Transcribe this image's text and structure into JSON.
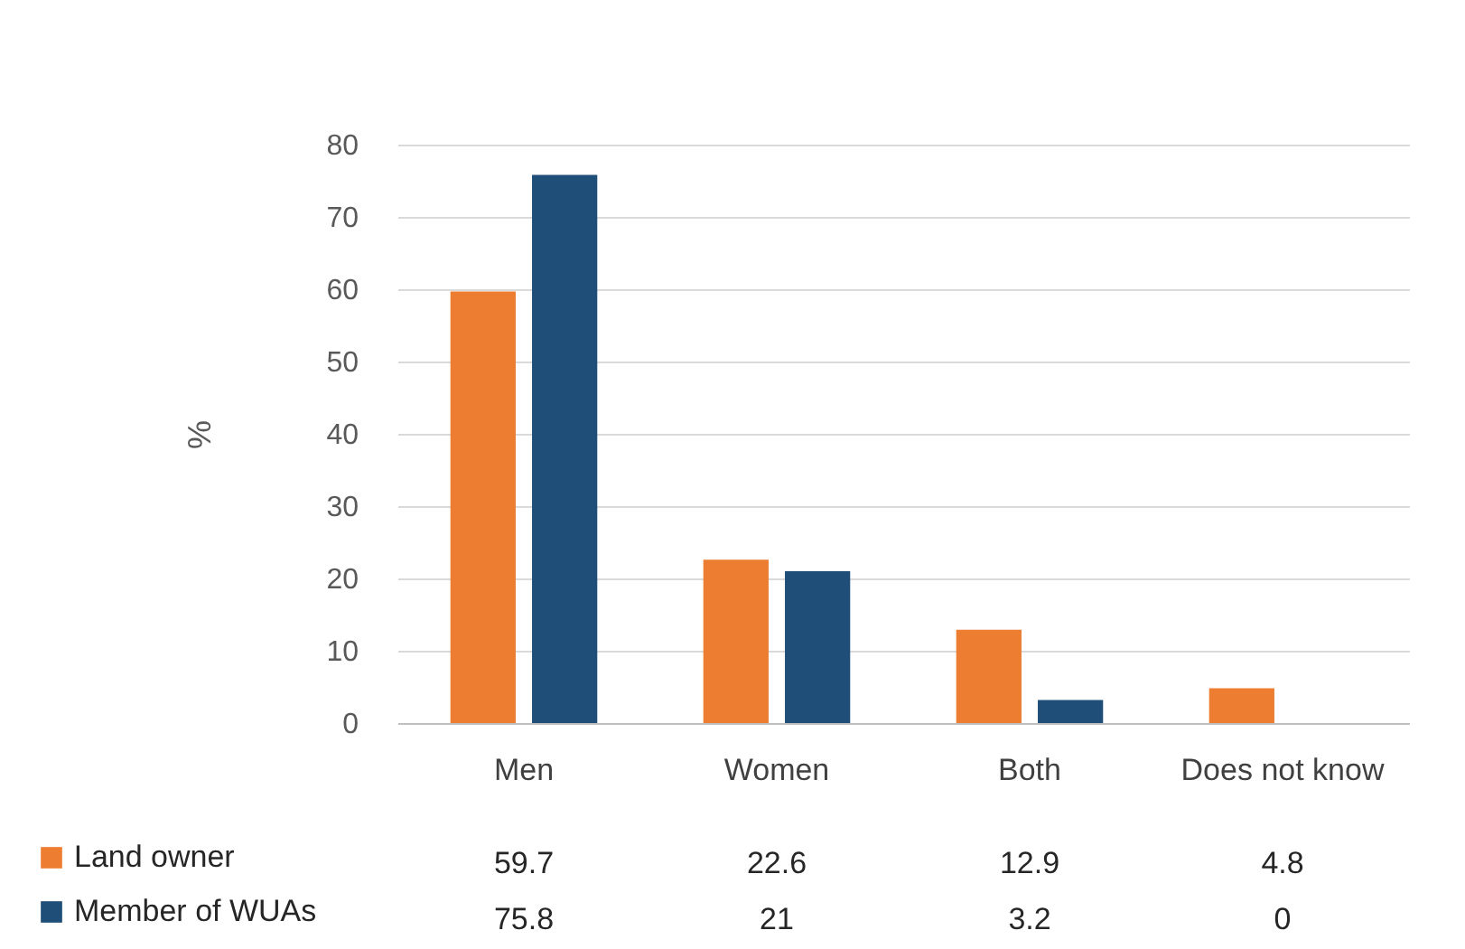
{
  "chart_data": {
    "type": "bar",
    "ylabel": "%",
    "categories": [
      "Men",
      "Women",
      "Both",
      "Does not know"
    ],
    "series": [
      {
        "name": "Land owner",
        "color": "#ed7d31",
        "values": [
          59.7,
          22.6,
          12.9,
          4.8
        ]
      },
      {
        "name": "Member of WUAs",
        "color": "#1f4e79",
        "values": [
          75.8,
          21,
          3.2,
          0
        ]
      }
    ],
    "ylim": [
      0,
      80
    ],
    "yticks": [
      0,
      10,
      20,
      30,
      40,
      50,
      60,
      70,
      80
    ],
    "grid": "y",
    "legend": "bottom left",
    "data_labels": true
  }
}
